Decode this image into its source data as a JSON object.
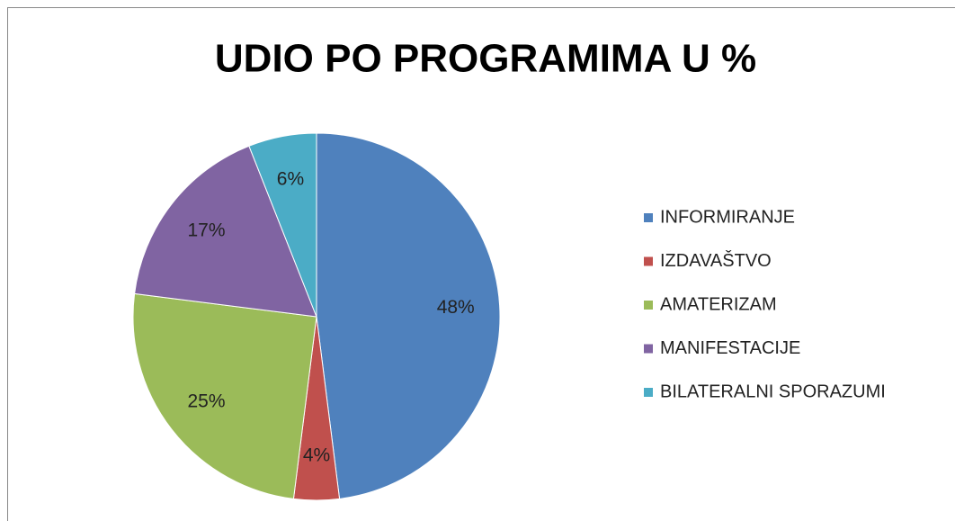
{
  "chart_data": {
    "type": "pie",
    "title": "UDIO PO PROGRAMIMA U %",
    "categories": [
      "INFORMIRANJE",
      "IZDAVAŠTVO",
      "AMATERIZAM",
      "MANIFESTACIJE",
      "BILATERALNI SPORAZUMI"
    ],
    "values": [
      48,
      4,
      25,
      17,
      6
    ],
    "value_labels": [
      "48%",
      "4%",
      "25%",
      "17%",
      "6%"
    ],
    "colors": [
      "#4f81bd",
      "#c0504d",
      "#9bbb59",
      "#8064a2",
      "#4bacc6"
    ],
    "legend": "right"
  }
}
